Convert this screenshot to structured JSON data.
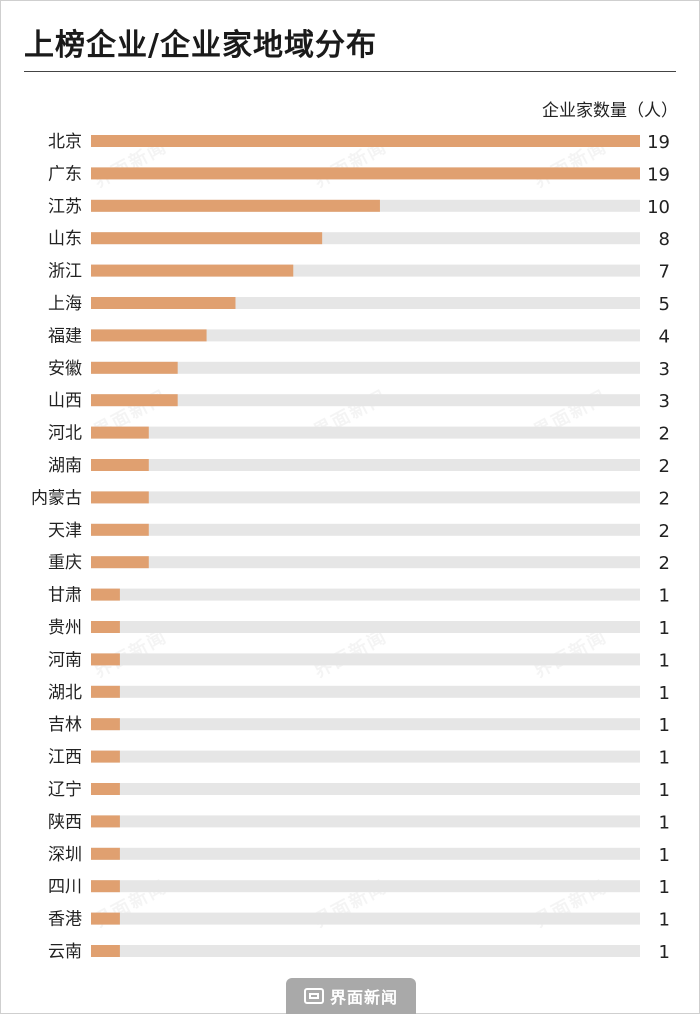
{
  "title": "上榜企业/企业家地域分布",
  "unit_label": "企业家数量（人）",
  "watermark_text": "界面新闻",
  "logo_text": "界面新闻",
  "colors": {
    "bar": "#e0a070",
    "track": "#e6e6e6"
  },
  "chart_data": {
    "type": "bar",
    "orientation": "horizontal",
    "title": "上榜企业/企业家地域分布",
    "xlabel": "企业家数量（人）",
    "ylabel": "",
    "xlim": [
      0,
      19
    ],
    "grid": false,
    "categories": [
      "北京",
      "广东",
      "江苏",
      "山东",
      "浙江",
      "上海",
      "福建",
      "安徽",
      "山西",
      "河北",
      "湖南",
      "内蒙古",
      "天津",
      "重庆",
      "甘肃",
      "贵州",
      "河南",
      "湖北",
      "吉林",
      "江西",
      "辽宁",
      "陕西",
      "深圳",
      "四川",
      "香港",
      "云南"
    ],
    "values": [
      19,
      19,
      10,
      8,
      7,
      5,
      4,
      3,
      3,
      2,
      2,
      2,
      2,
      2,
      1,
      1,
      1,
      1,
      1,
      1,
      1,
      1,
      1,
      1,
      1,
      1
    ]
  }
}
